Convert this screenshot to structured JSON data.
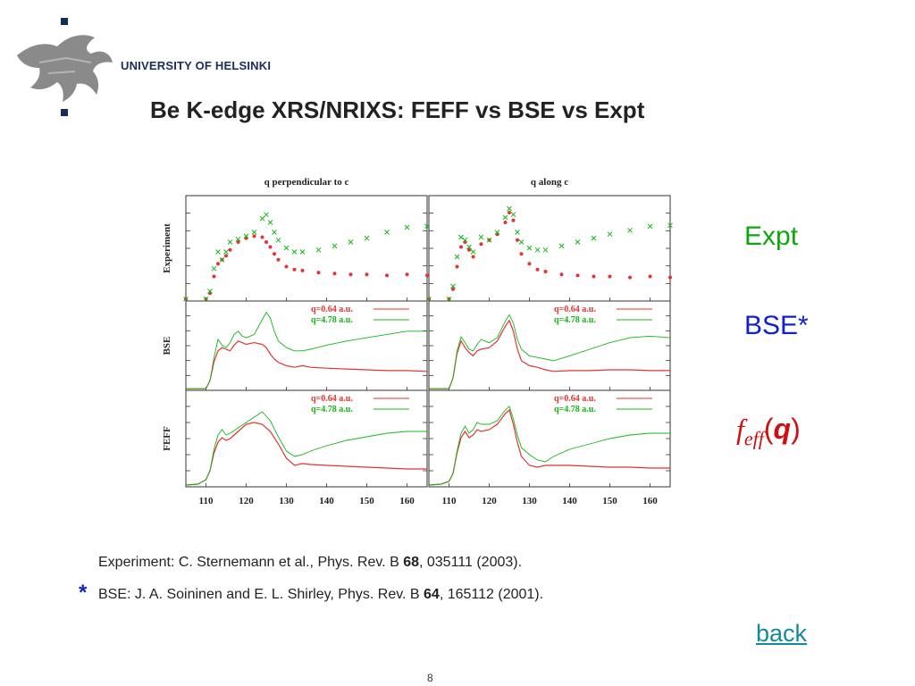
{
  "header": {
    "institution": "UNIVERSITY OF HELSINKI",
    "title": "Be K-edge XRS/NRIXS: FEFF vs BSE vs Expt"
  },
  "side_labels": {
    "expt": "Expt",
    "bse": "BSE*",
    "feff_f": "f",
    "feff_sub": "eff",
    "feff_q": "q"
  },
  "references": {
    "ref1_prefix": "Experiment: C. Sternemann et al., Phys. Rev. B ",
    "ref1_vol": "68",
    "ref1_suffix": ", 035111 (2003).",
    "star": "*",
    "ref2_prefix": "BSE: J. A. Soininen and E. L. Shirley, Phys. Rev. B ",
    "ref2_vol": "64",
    "ref2_suffix": ", 165112 (2001)."
  },
  "nav": {
    "back": "back"
  },
  "page_number": "8",
  "colors": {
    "red": "#e63232",
    "green": "#14b814",
    "expt_label": "#0aa80a",
    "bse_label": "#1020d0",
    "feff_label": "#d01010",
    "link": "#138a9c"
  },
  "chart_data": {
    "type": "line",
    "layout": "grid 3 rows x 2 columns",
    "column_titles": [
      "q perpendicular to c",
      "q along c"
    ],
    "row_labels": [
      "Experiment",
      "BSE",
      "FEFF"
    ],
    "x_ticks": [
      110,
      120,
      130,
      140,
      150,
      160
    ],
    "x_range": [
      105,
      165
    ],
    "legend": [
      "q=0.64 a.u.",
      "q=4.78 a.u."
    ],
    "panels": [
      {
        "row": "Experiment",
        "column": "q perpendicular to c",
        "style": "points",
        "series": [
          {
            "name": "q=0.64 a.u.",
            "color": "red",
            "x": [
              105,
              110,
              111,
              112,
              113,
              114,
              115,
              116,
              118,
              120,
              122,
              124,
              125,
              126,
              127,
              128,
              130,
              132,
              134,
              138,
              142,
              146,
              150,
              155,
              160,
              165
            ],
            "y": [
              0.02,
              0.02,
              0.08,
              0.25,
              0.38,
              0.42,
              0.46,
              0.52,
              0.6,
              0.64,
              0.66,
              0.65,
              0.6,
              0.55,
              0.48,
              0.42,
              0.35,
              0.32,
              0.31,
              0.29,
              0.28,
              0.27,
              0.27,
              0.26,
              0.27,
              0.26
            ]
          },
          {
            "name": "q=4.78 a.u.",
            "color": "green",
            "x": [
              105,
              110,
              111,
              112,
              113,
              114,
              115,
              116,
              118,
              120,
              122,
              124,
              125,
              126,
              127,
              128,
              130,
              132,
              134,
              138,
              142,
              146,
              150,
              155,
              160,
              165
            ],
            "y": [
              0.02,
              0.02,
              0.1,
              0.33,
              0.5,
              0.42,
              0.5,
              0.6,
              0.63,
              0.66,
              0.7,
              0.84,
              0.88,
              0.8,
              0.7,
              0.62,
              0.54,
              0.5,
              0.5,
              0.52,
              0.56,
              0.6,
              0.64,
              0.7,
              0.75,
              0.76
            ]
          }
        ]
      },
      {
        "row": "Experiment",
        "column": "q along c",
        "style": "points",
        "series": [
          {
            "name": "q=0.64 a.u.",
            "color": "red",
            "x": [
              105,
              110,
              111,
              112,
              113,
              114,
              115,
              116,
              118,
              120,
              122,
              124,
              125,
              126,
              127,
              128,
              130,
              132,
              134,
              138,
              142,
              146,
              150,
              155,
              160,
              165
            ],
            "y": [
              0.02,
              0.02,
              0.12,
              0.35,
              0.55,
              0.6,
              0.52,
              0.45,
              0.58,
              0.62,
              0.68,
              0.8,
              0.9,
              0.82,
              0.62,
              0.48,
              0.38,
              0.32,
              0.3,
              0.27,
              0.26,
              0.25,
              0.25,
              0.24,
              0.25,
              0.24
            ]
          },
          {
            "name": "q=4.78 a.u.",
            "color": "green",
            "x": [
              105,
              110,
              111,
              112,
              113,
              114,
              115,
              116,
              118,
              120,
              122,
              124,
              125,
              126,
              127,
              128,
              130,
              132,
              134,
              138,
              142,
              146,
              150,
              155,
              160,
              165
            ],
            "y": [
              0.02,
              0.02,
              0.15,
              0.45,
              0.65,
              0.62,
              0.55,
              0.5,
              0.65,
              0.62,
              0.7,
              0.85,
              0.94,
              0.88,
              0.7,
              0.6,
              0.54,
              0.52,
              0.52,
              0.56,
              0.6,
              0.64,
              0.68,
              0.72,
              0.76,
              0.77
            ]
          }
        ]
      },
      {
        "row": "BSE",
        "column": "q perpendicular to c",
        "style": "line",
        "series": [
          {
            "name": "q=0.64 a.u.",
            "color": "red",
            "x": [
              105,
              110,
              111,
              112,
              113,
              114,
              115,
              116,
              117,
              118,
              119,
              120,
              122,
              124,
              125,
              126,
              127,
              128,
              130,
              132,
              134,
              136,
              140,
              145,
              150,
              155,
              160,
              165
            ],
            "y": [
              0.02,
              0.02,
              0.12,
              0.35,
              0.48,
              0.52,
              0.5,
              0.48,
              0.55,
              0.6,
              0.58,
              0.56,
              0.58,
              0.56,
              0.52,
              0.44,
              0.38,
              0.34,
              0.3,
              0.28,
              0.3,
              0.28,
              0.27,
              0.26,
              0.25,
              0.24,
              0.24,
              0.23
            ]
          },
          {
            "name": "q=4.78 a.u.",
            "color": "green",
            "x": [
              105,
              110,
              111,
              112,
              113,
              114,
              115,
              116,
              117,
              118,
              119,
              120,
              122,
              124,
              125,
              126,
              127,
              128,
              130,
              132,
              134,
              136,
              140,
              145,
              150,
              155,
              160,
              165
            ],
            "y": [
              0.02,
              0.02,
              0.12,
              0.4,
              0.62,
              0.55,
              0.52,
              0.58,
              0.68,
              0.72,
              0.66,
              0.64,
              0.68,
              0.86,
              0.95,
              0.88,
              0.72,
              0.6,
              0.52,
              0.48,
              0.48,
              0.5,
              0.55,
              0.6,
              0.64,
              0.68,
              0.72,
              0.72
            ]
          }
        ]
      },
      {
        "row": "BSE",
        "column": "q along c",
        "style": "line",
        "series": [
          {
            "name": "q=0.64 a.u.",
            "color": "red",
            "x": [
              105,
              110,
              111,
              112,
              113,
              114,
              115,
              116,
              117,
              118,
              120,
              122,
              124,
              125,
              126,
              127,
              128,
              130,
              132,
              134,
              136,
              140,
              145,
              150,
              155,
              160,
              165
            ],
            "y": [
              0.02,
              0.02,
              0.15,
              0.45,
              0.6,
              0.52,
              0.46,
              0.42,
              0.48,
              0.5,
              0.52,
              0.6,
              0.78,
              0.85,
              0.72,
              0.5,
              0.36,
              0.3,
              0.28,
              0.25,
              0.23,
              0.24,
              0.24,
              0.25,
              0.25,
              0.24,
              0.24
            ]
          },
          {
            "name": "q=4.78 a.u.",
            "color": "green",
            "x": [
              105,
              110,
              111,
              112,
              113,
              114,
              115,
              116,
              117,
              118,
              120,
              122,
              124,
              125,
              126,
              127,
              128,
              130,
              132,
              134,
              136,
              140,
              145,
              150,
              155,
              160,
              165
            ],
            "y": [
              0.02,
              0.02,
              0.15,
              0.48,
              0.65,
              0.58,
              0.5,
              0.48,
              0.56,
              0.62,
              0.58,
              0.64,
              0.84,
              0.92,
              0.82,
              0.62,
              0.5,
              0.42,
              0.4,
              0.38,
              0.36,
              0.42,
              0.5,
              0.58,
              0.64,
              0.66,
              0.64
            ]
          }
        ]
      },
      {
        "row": "FEFF",
        "column": "q perpendicular to c",
        "style": "line",
        "series": [
          {
            "name": "q=0.64 a.u.",
            "color": "red",
            "x": [
              105,
              108,
              110,
              111,
              112,
              113,
              114,
              115,
              116,
              118,
              120,
              122,
              124,
              126,
              128,
              130,
              132,
              134,
              136,
              140,
              145,
              150,
              155,
              160,
              165
            ],
            "y": [
              0.02,
              0.03,
              0.08,
              0.18,
              0.38,
              0.5,
              0.55,
              0.52,
              0.54,
              0.62,
              0.7,
              0.72,
              0.7,
              0.62,
              0.48,
              0.32,
              0.24,
              0.26,
              0.25,
              0.24,
              0.23,
              0.22,
              0.21,
              0.2,
              0.2
            ]
          },
          {
            "name": "q=4.78 a.u.",
            "color": "green",
            "x": [
              105,
              108,
              110,
              111,
              112,
              113,
              114,
              115,
              116,
              118,
              120,
              122,
              124,
              126,
              128,
              130,
              132,
              134,
              136,
              140,
              145,
              150,
              155,
              160,
              165
            ],
            "y": [
              0.02,
              0.03,
              0.08,
              0.18,
              0.42,
              0.58,
              0.64,
              0.58,
              0.6,
              0.66,
              0.72,
              0.78,
              0.84,
              0.74,
              0.56,
              0.4,
              0.34,
              0.36,
              0.4,
              0.46,
              0.52,
              0.56,
              0.6,
              0.62,
              0.62
            ]
          }
        ]
      },
      {
        "row": "FEFF",
        "column": "q along c",
        "style": "line",
        "series": [
          {
            "name": "q=0.64 a.u.",
            "color": "red",
            "x": [
              105,
              108,
              110,
              111,
              112,
              113,
              114,
              115,
              116,
              117,
              118,
              120,
              122,
              124,
              125,
              126,
              127,
              128,
              130,
              132,
              134,
              136,
              140,
              145,
              150,
              155,
              160,
              165
            ],
            "y": [
              0.02,
              0.03,
              0.06,
              0.15,
              0.38,
              0.55,
              0.62,
              0.55,
              0.58,
              0.64,
              0.62,
              0.64,
              0.7,
              0.82,
              0.86,
              0.7,
              0.5,
              0.34,
              0.24,
              0.22,
              0.24,
              0.24,
              0.24,
              0.23,
              0.22,
              0.22,
              0.21,
              0.21
            ]
          },
          {
            "name": "q=4.78 a.u.",
            "color": "green",
            "x": [
              105,
              108,
              110,
              111,
              112,
              113,
              114,
              115,
              116,
              117,
              118,
              120,
              122,
              124,
              125,
              126,
              127,
              128,
              130,
              132,
              134,
              136,
              140,
              145,
              150,
              155,
              160,
              165
            ],
            "y": [
              0.02,
              0.03,
              0.06,
              0.15,
              0.4,
              0.6,
              0.68,
              0.6,
              0.64,
              0.72,
              0.7,
              0.7,
              0.74,
              0.86,
              0.9,
              0.76,
              0.58,
              0.44,
              0.36,
              0.3,
              0.28,
              0.34,
              0.42,
              0.48,
              0.54,
              0.58,
              0.6,
              0.6
            ]
          }
        ]
      }
    ]
  }
}
